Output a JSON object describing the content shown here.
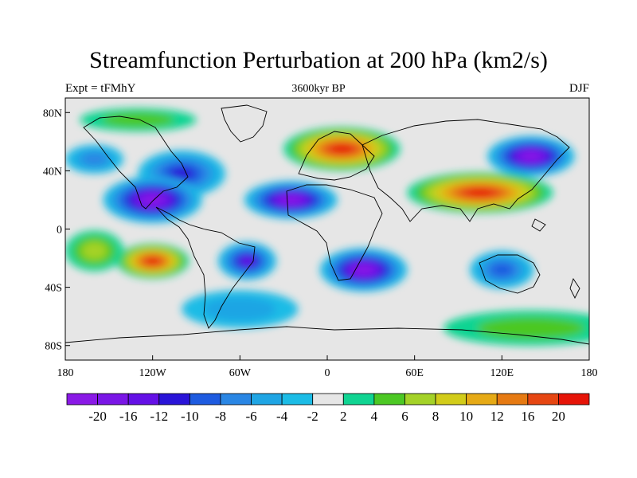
{
  "title": "Streamfunction Perturbation at 200 hPa (km2/s)",
  "subtitle_left": "Expt = tFMhY",
  "subtitle_center": "3600kyr BP",
  "subtitle_right": "DJF",
  "axes": {
    "lat_ticks": [
      "80N",
      "40N",
      "0",
      "40S",
      "80S"
    ],
    "lon_ticks": [
      "180",
      "120W",
      "60W",
      "0",
      "60E",
      "120E",
      "180"
    ]
  },
  "colorbar": {
    "colors": [
      "#8a19e6",
      "#7a16e6",
      "#6410e6",
      "#2a14d8",
      "#1e5be0",
      "#2a86e4",
      "#1fa5e4",
      "#1cbce6",
      "#e6e6e6",
      "#10d492",
      "#4cc824",
      "#a4d228",
      "#d2cc1a",
      "#e6aa16",
      "#e67a12",
      "#e64612",
      "#e61408"
    ],
    "labels": [
      "-20",
      "-16",
      "-12",
      "-10",
      "-8",
      "-6",
      "-4",
      "-2",
      "2",
      "4",
      "6",
      "8",
      "10",
      "12",
      "16",
      "20"
    ]
  },
  "features": [
    {
      "type": "low",
      "name": "n-america-low-east",
      "center": [
        -100,
        38
      ],
      "radius": [
        30,
        16
      ],
      "peak": -11
    },
    {
      "type": "low",
      "name": "n-pacific-low",
      "center": [
        -160,
        48
      ],
      "radius": [
        20,
        10
      ],
      "peak": -6
    },
    {
      "type": "low",
      "name": "pacific-subtropic-low",
      "center": [
        -120,
        20
      ],
      "radius": [
        34,
        16
      ],
      "peak": -21
    },
    {
      "type": "low",
      "name": "atlantic-subtropic-low",
      "center": [
        -25,
        20
      ],
      "radius": [
        32,
        13
      ],
      "peak": -21
    },
    {
      "type": "low",
      "name": "south-america-low",
      "center": [
        -55,
        -22
      ],
      "radius": [
        20,
        13
      ],
      "peak": -13
    },
    {
      "type": "low",
      "name": "south-africa-low",
      "center": [
        25,
        -28
      ],
      "radius": [
        30,
        15
      ],
      "peak": -21
    },
    {
      "type": "low",
      "name": "nw-pacific-low",
      "center": [
        140,
        50
      ],
      "radius": [
        30,
        14
      ],
      "peak": -21
    },
    {
      "type": "low",
      "name": "indo-aust-low",
      "center": [
        120,
        -28
      ],
      "radius": [
        22,
        13
      ],
      "peak": -8
    },
    {
      "type": "low",
      "name": "southern-ocean-low",
      "center": [
        -60,
        -55
      ],
      "radius": [
        40,
        13
      ],
      "peak": -4
    },
    {
      "type": "high",
      "name": "europe-high",
      "center": [
        10,
        55
      ],
      "radius": [
        40,
        15
      ],
      "peak": 20
    },
    {
      "type": "high",
      "name": "asia-high",
      "center": [
        105,
        25
      ],
      "radius": [
        50,
        14
      ],
      "peak": 22
    },
    {
      "type": "high",
      "name": "south-pacific-high",
      "center": [
        -120,
        -22
      ],
      "radius": [
        25,
        12
      ],
      "peak": 22
    },
    {
      "type": "high",
      "name": "west-pacific-high",
      "center": [
        -160,
        -15
      ],
      "radius": [
        20,
        14
      ],
      "peak": 6
    },
    {
      "type": "high",
      "name": "antarctic-high",
      "center": [
        140,
        -68
      ],
      "radius": [
        60,
        12
      ],
      "peak": 4
    },
    {
      "type": "high",
      "name": "arctic-high",
      "center": [
        -130,
        75
      ],
      "radius": [
        40,
        8
      ],
      "peak": 4
    }
  ]
}
